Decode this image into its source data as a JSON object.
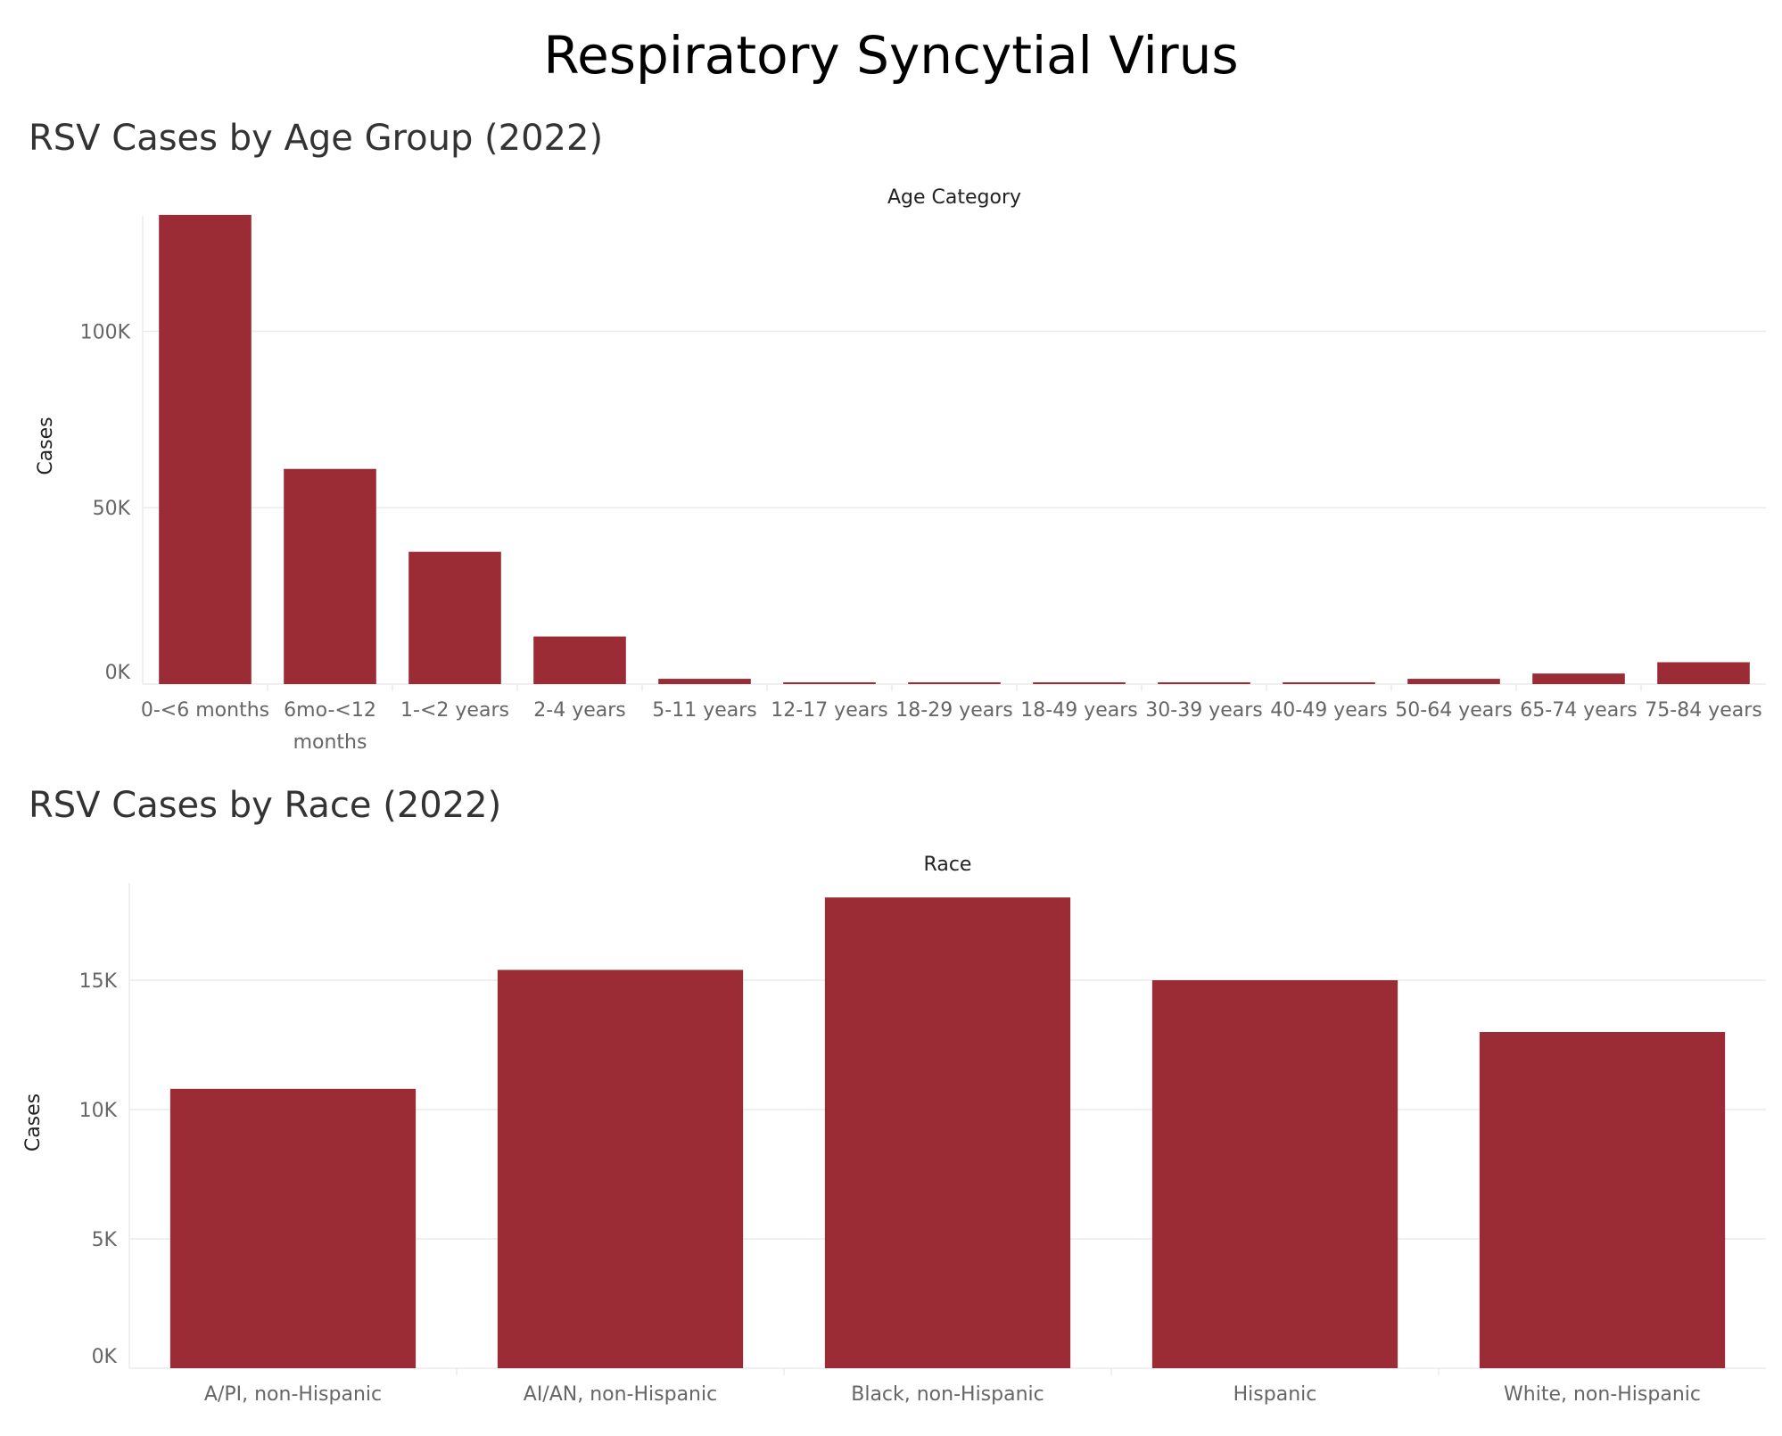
{
  "dashboard": {
    "title": "Respiratory Syncytial Virus"
  },
  "colors": {
    "bar": "#9b2b34",
    "grid": "#ebebeb",
    "axis_text": "#666666",
    "title_text": "#333333"
  },
  "chart_data": [
    {
      "type": "bar",
      "title": "RSV Cases by Age Group (2022)",
      "header": "Age Category",
      "ylabel": "Cases",
      "ylim": [
        0,
        135000
      ],
      "yticks": [
        0,
        50000,
        100000
      ],
      "ytick_labels": [
        "0K",
        "50K",
        "100K"
      ],
      "categories": [
        "0-<6 months",
        "6mo-<12 months",
        "1-<2 years",
        "2-4 years",
        "5-11 years",
        "12-17 years",
        "18-29 years",
        "18-49 years",
        "30-39 years",
        "40-49 years",
        "50-64 years",
        "65-74 years",
        "75-84 years"
      ],
      "values": [
        133000,
        61000,
        37500,
        13500,
        1500,
        300,
        300,
        300,
        300,
        300,
        1500,
        3000,
        6200
      ]
    },
    {
      "type": "bar",
      "title": "RSV Cases by Race (2022)",
      "header": "Race",
      "ylabel": "Cases",
      "ylim": [
        0,
        19000
      ],
      "yticks": [
        0,
        5000,
        10000,
        15000
      ],
      "ytick_labels": [
        "0K",
        "5K",
        "10K",
        "15K"
      ],
      "categories": [
        "A/PI, non-Hispanic",
        "AI/AN, non-Hispanic",
        "Black, non-Hispanic",
        "Hispanic",
        "White, non-Hispanic"
      ],
      "values": [
        10800,
        15400,
        18200,
        15000,
        13000
      ]
    }
  ]
}
